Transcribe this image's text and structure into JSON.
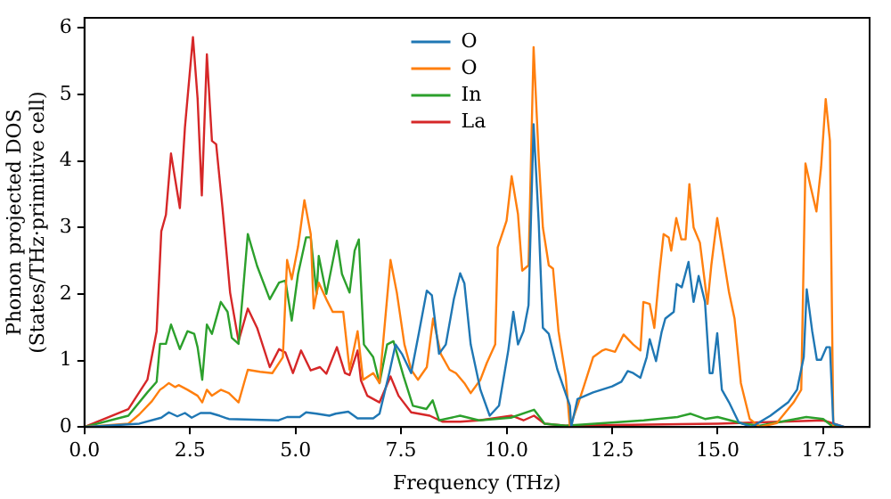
{
  "chart_data": {
    "type": "line",
    "xlabel": "Frequency (THz)",
    "ylabel": "Phonon projected DOS\n(States/THz·primitive cell)",
    "xlim": [
      0,
      18.6
    ],
    "ylim": [
      0,
      6.15
    ],
    "xticks": [
      {
        "value": 0,
        "label": "0.0"
      },
      {
        "value": 2.5,
        "label": "2.5"
      },
      {
        "value": 5,
        "label": "5.0"
      },
      {
        "value": 7.5,
        "label": "7.5"
      },
      {
        "value": 10,
        "label": "10.0"
      },
      {
        "value": 12.5,
        "label": "12.5"
      },
      {
        "value": 15,
        "label": "15.0"
      },
      {
        "value": 17.5,
        "label": "17.5"
      }
    ],
    "yticks": [
      0,
      1,
      2,
      3,
      4,
      5,
      6
    ],
    "legend": "top",
    "marker": "none",
    "line_style": "solid",
    "grid": false,
    "series": [
      {
        "name": "O",
        "color": "#1f77b4",
        "x": [
          0,
          1.3,
          1.82,
          2.0,
          2.2,
          2.38,
          2.54,
          2.75,
          2.98,
          3.2,
          3.42,
          4.0,
          4.6,
          4.8,
          5.1,
          5.25,
          5.5,
          5.8,
          5.95,
          6.25,
          6.47,
          6.84,
          6.99,
          7.22,
          7.37,
          7.52,
          7.74,
          7.93,
          8.11,
          8.23,
          8.4,
          8.56,
          8.75,
          8.9,
          9.0,
          9.15,
          9.38,
          9.6,
          9.82,
          10.04,
          10.16,
          10.27,
          10.4,
          10.52,
          10.64,
          10.76,
          10.86,
          11.0,
          11.2,
          11.5,
          11.53,
          11.68,
          12.05,
          12.5,
          12.72,
          12.87,
          13.0,
          13.17,
          13.32,
          13.39,
          13.54,
          13.67,
          13.76,
          13.96,
          14.03,
          14.15,
          14.31,
          14.43,
          14.55,
          14.7,
          14.81,
          14.88,
          14.99,
          15.1,
          15.27,
          15.5,
          15.8,
          16.25,
          16.67,
          16.88,
          17.04,
          17.11,
          17.24,
          17.35,
          17.45,
          17.58,
          17.66,
          17.74,
          18.0
        ],
        "values": [
          0,
          0.05,
          0.14,
          0.22,
          0.16,
          0.21,
          0.14,
          0.21,
          0.21,
          0.17,
          0.12,
          0.11,
          0.1,
          0.15,
          0.15,
          0.22,
          0.2,
          0.17,
          0.2,
          0.23,
          0.13,
          0.13,
          0.2,
          0.81,
          1.24,
          1.1,
          0.81,
          1.44,
          2.05,
          1.98,
          1.1,
          1.24,
          1.92,
          2.31,
          2.16,
          1.24,
          0.56,
          0.17,
          0.32,
          1.15,
          1.73,
          1.24,
          1.44,
          1.83,
          4.55,
          3.09,
          1.49,
          1.4,
          0.87,
          0.32,
          0,
          0.42,
          0.52,
          0.61,
          0.68,
          0.84,
          0.81,
          0.74,
          1.05,
          1.32,
          0.99,
          1.42,
          1.63,
          1.73,
          2.15,
          2.1,
          2.48,
          1.88,
          2.27,
          1.88,
          0.81,
          0.81,
          1.41,
          0.56,
          0.37,
          0.07,
          0,
          0.17,
          0.37,
          0.56,
          1.05,
          2.07,
          1.44,
          1.01,
          1.01,
          1.2,
          1.2,
          0.05,
          0
        ]
      },
      {
        "name": "O",
        "color": "#ff7f0e",
        "x": [
          0,
          1.04,
          1.3,
          1.6,
          1.79,
          1.88,
          2.0,
          2.15,
          2.23,
          2.44,
          2.68,
          2.79,
          2.9,
          3.02,
          3.23,
          3.42,
          3.65,
          3.87,
          4.16,
          4.45,
          4.7,
          4.8,
          4.91,
          5.06,
          5.21,
          5.36,
          5.43,
          5.55,
          5.73,
          5.88,
          6.0,
          6.13,
          6.28,
          6.47,
          6.6,
          6.84,
          6.99,
          7.25,
          7.4,
          7.58,
          7.74,
          7.9,
          8.11,
          8.26,
          8.44,
          8.65,
          8.8,
          9.0,
          9.15,
          9.38,
          9.53,
          9.73,
          9.79,
          10.0,
          10.12,
          10.27,
          10.37,
          10.52,
          10.64,
          10.76,
          10.86,
          11.0,
          11.1,
          11.23,
          11.4,
          11.5,
          11.68,
          11.83,
          12.05,
          12.27,
          12.35,
          12.57,
          12.77,
          13.0,
          13.17,
          13.24,
          13.39,
          13.5,
          13.62,
          13.72,
          13.84,
          13.9,
          14.02,
          14.14,
          14.24,
          14.33,
          14.43,
          14.58,
          14.76,
          14.85,
          14.99,
          15.1,
          15.27,
          15.4,
          15.55,
          15.76,
          16.0,
          16.4,
          16.8,
          16.98,
          17.08,
          17.2,
          17.34,
          17.45,
          17.56,
          17.66,
          17.74,
          18.0
        ],
        "values": [
          0,
          0.05,
          0.19,
          0.39,
          0.56,
          0.6,
          0.66,
          0.6,
          0.63,
          0.56,
          0.47,
          0.37,
          0.56,
          0.47,
          0.56,
          0.51,
          0.37,
          0.86,
          0.83,
          0.81,
          1.05,
          2.51,
          2.22,
          2.71,
          3.41,
          2.9,
          1.78,
          2.17,
          1.92,
          1.73,
          1.73,
          1.73,
          0.86,
          1.44,
          0.71,
          0.81,
          0.66,
          2.51,
          2.02,
          1.24,
          0.86,
          0.71,
          0.9,
          1.63,
          1.1,
          0.86,
          0.81,
          0.66,
          0.51,
          0.71,
          0.96,
          1.24,
          2.7,
          3.1,
          3.77,
          3.2,
          2.35,
          2.43,
          5.71,
          4.06,
          3.0,
          2.43,
          2.38,
          1.44,
          0.76,
          0,
          0.32,
          0.61,
          1.05,
          1.15,
          1.17,
          1.13,
          1.39,
          1.24,
          1.15,
          1.88,
          1.85,
          1.49,
          2.31,
          2.9,
          2.85,
          2.65,
          3.14,
          2.82,
          2.82,
          3.65,
          3.0,
          2.77,
          1.85,
          2.43,
          3.14,
          2.7,
          2.02,
          1.63,
          0.66,
          0.12,
          0,
          0.06,
          0.37,
          0.56,
          3.96,
          3.62,
          3.24,
          3.9,
          4.93,
          4.3,
          0,
          0
        ]
      },
      {
        "name": "In",
        "color": "#2ca02c",
        "x": [
          0,
          1.04,
          1.49,
          1.71,
          1.79,
          1.93,
          2.05,
          2.26,
          2.44,
          2.6,
          2.68,
          2.79,
          2.9,
          3.02,
          3.23,
          3.39,
          3.49,
          3.65,
          3.87,
          4.09,
          4.39,
          4.61,
          4.76,
          4.91,
          5.06,
          5.25,
          5.36,
          5.5,
          5.55,
          5.73,
          5.98,
          6.1,
          6.28,
          6.4,
          6.5,
          6.62,
          6.84,
          6.99,
          7.17,
          7.32,
          7.56,
          7.78,
          8.1,
          8.25,
          8.4,
          8.9,
          9.35,
          10.1,
          10.65,
          10.9,
          11.4,
          13.25,
          14.05,
          14.36,
          14.7,
          15.0,
          15.6,
          16.0,
          17.1,
          17.5,
          17.7,
          18.0
        ],
        "values": [
          0,
          0.17,
          0.52,
          0.68,
          1.25,
          1.25,
          1.54,
          1.17,
          1.44,
          1.4,
          1.2,
          0.71,
          1.54,
          1.4,
          1.88,
          1.73,
          1.34,
          1.25,
          2.9,
          2.42,
          1.92,
          2.17,
          2.2,
          1.6,
          2.3,
          2.85,
          2.85,
          2.0,
          2.57,
          2.0,
          2.8,
          2.3,
          2.02,
          2.65,
          2.82,
          1.24,
          1.05,
          0.66,
          1.24,
          1.29,
          0.76,
          0.32,
          0.27,
          0.4,
          0.1,
          0.17,
          0.1,
          0.14,
          0.26,
          0.05,
          0.02,
          0.1,
          0.15,
          0.2,
          0.12,
          0.15,
          0.05,
          0.02,
          0.15,
          0.12,
          0.02,
          0
        ]
      },
      {
        "name": "La",
        "color": "#d62728",
        "x": [
          0,
          1.04,
          1.49,
          1.71,
          1.82,
          1.93,
          2.05,
          2.26,
          2.38,
          2.57,
          2.68,
          2.78,
          2.9,
          3.02,
          3.12,
          3.27,
          3.45,
          3.65,
          3.87,
          4.09,
          4.39,
          4.61,
          4.76,
          4.94,
          5.13,
          5.36,
          5.58,
          5.73,
          5.98,
          6.17,
          6.28,
          6.47,
          6.55,
          6.7,
          6.99,
          7.25,
          7.44,
          7.74,
          8.18,
          8.48,
          8.9,
          9.35,
          10.12,
          10.4,
          10.65,
          10.9,
          11.4,
          15.0,
          17.5,
          18.0
        ],
        "values": [
          0,
          0.27,
          0.71,
          1.44,
          2.94,
          3.19,
          4.11,
          3.29,
          4.5,
          5.86,
          4.94,
          3.48,
          5.6,
          4.3,
          4.25,
          3.29,
          2.02,
          1.29,
          1.78,
          1.49,
          0.9,
          1.17,
          1.12,
          0.81,
          1.15,
          0.85,
          0.9,
          0.8,
          1.2,
          0.81,
          0.78,
          1.15,
          0.7,
          0.47,
          0.37,
          0.76,
          0.47,
          0.22,
          0.17,
          0.08,
          0.08,
          0.1,
          0.17,
          0.1,
          0.17,
          0.05,
          0.02,
          0.05,
          0.1,
          0
        ]
      }
    ]
  }
}
